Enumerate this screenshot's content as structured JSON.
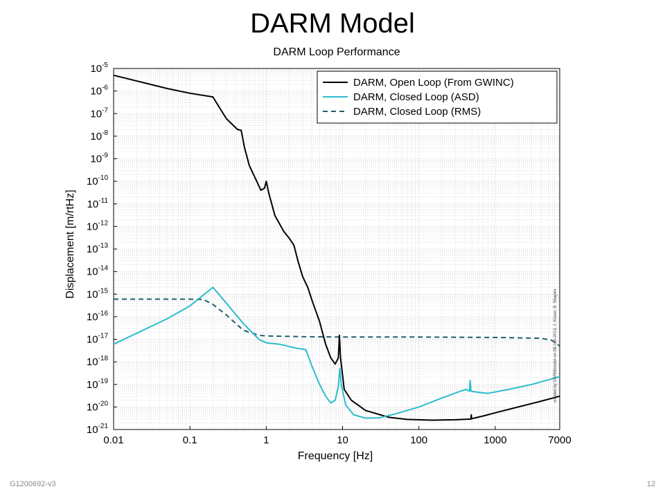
{
  "slide": {
    "title": "DARM Model",
    "document_id": "G1200692-v3",
    "page_number": "12"
  },
  "chart_data": {
    "type": "line",
    "title": "DARM Loop Performance",
    "xlabel": "Frequency [Hz]",
    "ylabel": "Displacement [m/rtHz]",
    "x_scale": "log",
    "y_scale": "log",
    "xlim": [
      0.01,
      7000
    ],
    "ylim": [
      1e-21,
      1e-05
    ],
    "x_ticks": [
      0.01,
      0.1,
      1,
      10,
      100,
      1000,
      7000
    ],
    "x_tick_labels": [
      "0.01",
      "0.1",
      "1",
      "10",
      "100",
      "1000",
      "7000"
    ],
    "y_ticks": [
      {
        "base": "10",
        "exp": "-5"
      },
      {
        "base": "10",
        "exp": "-6"
      },
      {
        "base": "10",
        "exp": "-7"
      },
      {
        "base": "10",
        "exp": "-8"
      },
      {
        "base": "10",
        "exp": "-9"
      },
      {
        "base": "10",
        "exp": "-10"
      },
      {
        "base": "10",
        "exp": "-11"
      },
      {
        "base": "10",
        "exp": "-12"
      },
      {
        "base": "10",
        "exp": "-13"
      },
      {
        "base": "10",
        "exp": "-14"
      },
      {
        "base": "10",
        "exp": "-15"
      },
      {
        "base": "10",
        "exp": "-16"
      },
      {
        "base": "10",
        "exp": "-17"
      },
      {
        "base": "10",
        "exp": "-18"
      },
      {
        "base": "10",
        "exp": "-19"
      },
      {
        "base": "10",
        "exp": "-20"
      },
      {
        "base": "10",
        "exp": "-21"
      }
    ],
    "grid": true,
    "legend_position": "top-right",
    "series": [
      {
        "name": "DARM, Open Loop (From GWINC)",
        "color": "#000000",
        "style": "solid",
        "points": [
          [
            0.01,
            5e-06
          ],
          [
            0.05,
            1.3e-06
          ],
          [
            0.1,
            8e-07
          ],
          [
            0.2,
            5.5e-07
          ],
          [
            0.3,
            6e-08
          ],
          [
            0.42,
            2e-08
          ],
          [
            0.47,
            1.8e-08
          ],
          [
            0.52,
            3e-09
          ],
          [
            0.6,
            5e-10
          ],
          [
            0.75,
            1e-10
          ],
          [
            0.85,
            4e-11
          ],
          [
            0.95,
            5e-11
          ],
          [
            1.0,
            1e-10
          ],
          [
            1.08,
            3e-11
          ],
          [
            1.3,
            3e-12
          ],
          [
            1.7,
            6e-13
          ],
          [
            2.0,
            3e-13
          ],
          [
            2.3,
            1.5e-13
          ],
          [
            2.6,
            3e-14
          ],
          [
            3.0,
            6e-15
          ],
          [
            3.5,
            2e-15
          ],
          [
            4.0,
            5e-16
          ],
          [
            5.0,
            6e-17
          ],
          [
            6.0,
            6e-18
          ],
          [
            7.0,
            1.5e-18
          ],
          [
            8.0,
            8e-19
          ],
          [
            8.8,
            1.5e-18
          ],
          [
            9.1,
            1.5e-17
          ],
          [
            9.4,
            1.5e-18
          ],
          [
            10.5,
            6e-20
          ],
          [
            13.0,
            2e-20
          ],
          [
            20.0,
            7e-21
          ],
          [
            40.0,
            3.5e-21
          ],
          [
            70.0,
            2.8e-21
          ],
          [
            150.0,
            2.6e-21
          ],
          [
            300.0,
            2.7e-21
          ],
          [
            480.0,
            2.9e-21
          ],
          [
            485.0,
            4.5e-21
          ],
          [
            490.0,
            3e-21
          ],
          [
            700.0,
            4e-21
          ],
          [
            1000.0,
            5.5e-21
          ],
          [
            2000.0,
            1e-20
          ],
          [
            4000.0,
            1.8e-20
          ],
          [
            7000.0,
            3e-20
          ]
        ]
      },
      {
        "name": "DARM, Closed Loop (ASD)",
        "color": "#2bbccc",
        "style": "solid",
        "points": [
          [
            0.01,
            6e-18
          ],
          [
            0.05,
            8e-17
          ],
          [
            0.1,
            3e-16
          ],
          [
            0.2,
            2e-15
          ],
          [
            0.3,
            4e-16
          ],
          [
            0.5,
            5e-17
          ],
          [
            0.8,
            1e-17
          ],
          [
            1.0,
            7e-18
          ],
          [
            1.5,
            6e-18
          ],
          [
            2.5,
            4e-18
          ],
          [
            3.3,
            3.5e-18
          ],
          [
            4.0,
            6e-19
          ],
          [
            5.0,
            1e-19
          ],
          [
            6.0,
            3e-20
          ],
          [
            7.0,
            1.5e-20
          ],
          [
            8.0,
            2e-20
          ],
          [
            8.8,
            8e-20
          ],
          [
            9.2,
            5e-19
          ],
          [
            9.6,
            1e-19
          ],
          [
            11.0,
            1.2e-20
          ],
          [
            14.0,
            4.5e-21
          ],
          [
            20.0,
            3.2e-21
          ],
          [
            30.0,
            3.3e-21
          ],
          [
            50.0,
            5e-21
          ],
          [
            100.0,
            1e-20
          ],
          [
            200.0,
            2.5e-20
          ],
          [
            350.0,
            5e-20
          ],
          [
            420.0,
            6e-20
          ],
          [
            460.0,
            5e-20
          ],
          [
            470.0,
            1.5e-19
          ],
          [
            480.0,
            5e-20
          ],
          [
            600.0,
            4.5e-20
          ],
          [
            800.0,
            4e-20
          ],
          [
            1500.0,
            6e-20
          ],
          [
            3000.0,
            1e-19
          ],
          [
            7000.0,
            2.2e-19
          ]
        ]
      },
      {
        "name": "DARM, Closed Loop (RMS)",
        "color": "#1f5c66",
        "style": "dashed",
        "points": [
          [
            0.01,
            6e-16
          ],
          [
            0.1,
            6e-16
          ],
          [
            0.15,
            5.8e-16
          ],
          [
            0.2,
            3.5e-16
          ],
          [
            0.3,
            1.2e-16
          ],
          [
            0.5,
            2.5e-17
          ],
          [
            0.8,
            1.5e-17
          ],
          [
            1.0,
            1.4e-17
          ],
          [
            3.0,
            1.3e-17
          ],
          [
            10.0,
            1.25e-17
          ],
          [
            100.0,
            1.25e-17
          ],
          [
            1000.0,
            1.2e-17
          ],
          [
            4000.0,
            1.1e-17
          ],
          [
            5500.0,
            9e-18
          ],
          [
            7000.0,
            5e-18
          ]
        ]
      }
    ],
    "annotation": "created by DARMmodel on 08-Jan-2013, J. Kissel, B. Shapiro"
  }
}
